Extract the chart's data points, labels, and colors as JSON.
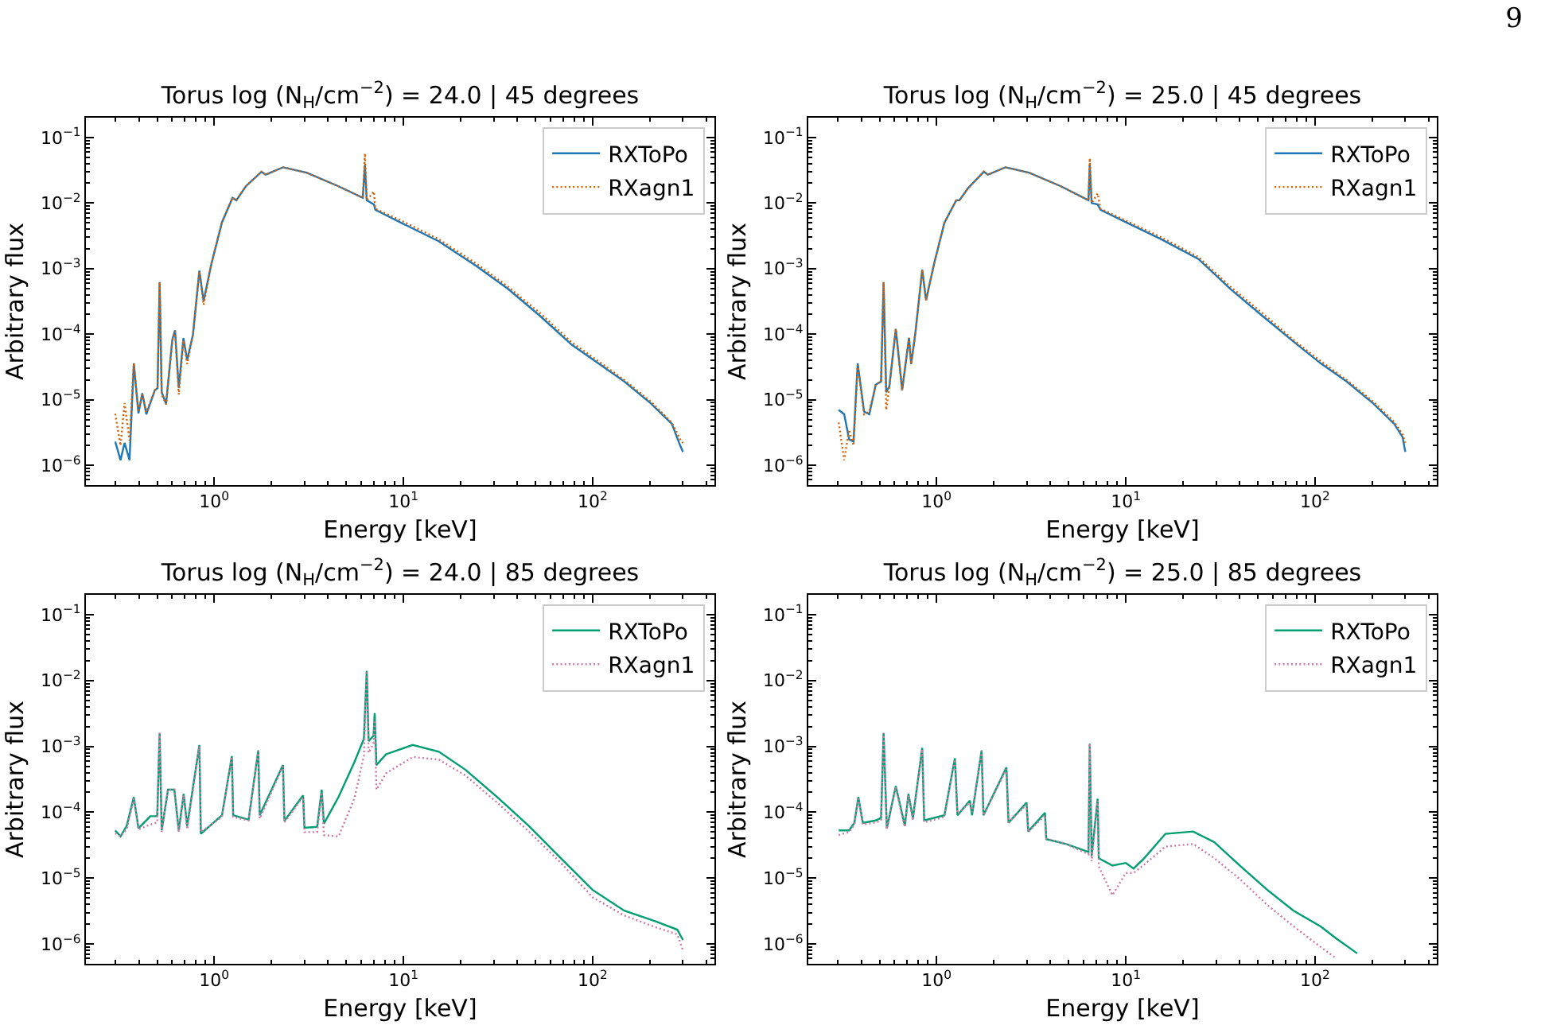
{
  "chart_data": [
    {
      "type": "line",
      "title": "Torus log (N$_{H}$/cm$^{−2}$) = 24.0 | 45 degrees",
      "xlabel": "Energy [keV]",
      "ylabel": "Arbitrary flux",
      "log": "xy",
      "legend": "top right",
      "xlim": [
        0.21,
        440
      ],
      "ylim": [
        5e-07,
        0.2
      ],
      "xticks": [
        {
          "value": 1,
          "label": "10$^{0}$"
        },
        {
          "value": 10,
          "label": "10$^{1}$"
        },
        {
          "value": 100,
          "label": "10$^{2}$"
        }
      ],
      "yticks": [
        {
          "value": 1e-06,
          "label": "10$^{−6}$"
        },
        {
          "value": 1e-05,
          "label": "10$^{−5}$"
        },
        {
          "value": 0.0001,
          "label": "10$^{−4}$"
        },
        {
          "value": 0.001,
          "label": "10$^{−3}$"
        },
        {
          "value": 0.01,
          "label": "10$^{−2}$"
        },
        {
          "value": 0.1,
          "label": "10$^{−1}$"
        }
      ],
      "x": [
        0.3,
        0.32,
        0.336,
        0.357,
        0.376,
        0.398,
        0.417,
        0.438,
        0.486,
        0.502,
        0.515,
        0.528,
        0.557,
        0.601,
        0.621,
        0.65,
        0.688,
        0.72,
        0.773,
        0.835,
        0.879,
        0.968,
        1.1,
        1.25,
        1.31,
        1.47,
        1.78,
        1.87,
        2.31,
        3.08,
        4.54,
        6.1,
        6.26,
        6.4,
        6.99,
        7.1,
        10,
        15.4,
        24.2,
        35.7,
        52.7,
        77.5,
        107,
        147,
        202,
        262,
        290,
        300
      ],
      "series": [
        {
          "name": "RXToPo",
          "color": "#1f77b4",
          "line_style": "solid",
          "values": [
            2.3e-06,
            1.2e-06,
            2.2e-06,
            1.2e-06,
            3.6e-05,
            6.2e-06,
            1.26e-05,
            6e-06,
            1.4e-05,
            1.5e-05,
            0.00062,
            1.3e-05,
            8.7e-06,
            8.3e-05,
            0.000115,
            1.5e-05,
            8.7e-05,
            4e-05,
            0.0001,
            0.00093,
            0.00032,
            0.0012,
            0.0051,
            0.012,
            0.011,
            0.018,
            0.03,
            0.027,
            0.035,
            0.029,
            0.018,
            0.012,
            0.038,
            0.011,
            0.0095,
            0.0079,
            0.0048,
            0.0026,
            0.0011,
            0.00049,
            0.00019,
            6.9e-05,
            3.6e-05,
            1.9e-05,
            8.9e-06,
            4.3e-06,
            2e-06,
            1.6e-06
          ]
        },
        {
          "name": "RXagn1",
          "color": "#d95f02",
          "line_style": "dotted",
          "values": [
            6.1e-06,
            2e-06,
            8.9e-06,
            2.4e-06,
            3.6e-05,
            6.5e-06,
            1.2e-05,
            6.5e-06,
            1.4e-05,
            1.5e-05,
            0.00062,
            1.2e-05,
            8.5e-06,
            8e-05,
            0.00011,
            1.2e-05,
            8e-05,
            3.5e-05,
            0.0001,
            0.0009,
            0.00028,
            0.0012,
            0.0051,
            0.012,
            0.011,
            0.018,
            0.03,
            0.027,
            0.035,
            0.029,
            0.018,
            0.012,
            0.057,
            0.011,
            0.015,
            0.0082,
            0.0052,
            0.0028,
            0.0012,
            0.00053,
            0.00021,
            7.5e-05,
            3.9e-05,
            2e-05,
            9.5e-06,
            4.5e-06,
            2.5e-06,
            2.2e-06
          ]
        }
      ]
    },
    {
      "type": "line",
      "title": "Torus log (N$_{H}$/cm$^{−2}$) = 25.0 | 45 degrees",
      "xlabel": "Energy [keV]",
      "ylabel": "Arbitrary flux",
      "log": "xy",
      "legend": "top right",
      "xlim": [
        0.21,
        440
      ],
      "ylim": [
        5e-07,
        0.2
      ],
      "annotations": [
        "9"
      ],
      "xticks": [
        {
          "value": 1,
          "label": "10$^{0}$"
        },
        {
          "value": 10,
          "label": "10$^{1}$"
        },
        {
          "value": 100,
          "label": "10$^{2}$"
        }
      ],
      "yticks": [
        {
          "value": 1e-06,
          "label": "10$^{−6}$"
        },
        {
          "value": 1e-05,
          "label": "10$^{−5}$"
        },
        {
          "value": 0.0001,
          "label": "10$^{−4}$"
        },
        {
          "value": 0.001,
          "label": "10$^{−3}$"
        },
        {
          "value": 0.01,
          "label": "10$^{−2}$"
        },
        {
          "value": 0.1,
          "label": "10$^{−1}$"
        }
      ],
      "x": [
        0.304,
        0.325,
        0.345,
        0.364,
        0.383,
        0.414,
        0.441,
        0.477,
        0.509,
        0.525,
        0.542,
        0.563,
        0.609,
        0.658,
        0.715,
        0.734,
        0.773,
        0.84,
        0.88,
        0.968,
        1.1,
        1.27,
        1.32,
        1.47,
        1.78,
        1.87,
        2.31,
        3.08,
        4.54,
        6.35,
        6.45,
        6.6,
        7.1,
        7.35,
        10,
        15.4,
        24.2,
        35.7,
        52.7,
        77.5,
        107,
        147,
        202,
        262,
        290,
        300
      ],
      "series": [
        {
          "name": "RXToPo",
          "color": "#1f77b4",
          "line_style": "solid",
          "values": [
            7e-06,
            6e-06,
            2.5e-06,
            2.3e-06,
            3.6e-05,
            6.6e-06,
            6e-06,
            1.7e-05,
            1.9e-05,
            0.00062,
            1.3e-05,
            1.6e-05,
            0.00012,
            1.4e-05,
            8.8e-05,
            3.5e-05,
            0.000105,
            0.00096,
            0.00033,
            0.00115,
            0.005,
            0.011,
            0.011,
            0.017,
            0.03,
            0.027,
            0.035,
            0.029,
            0.018,
            0.011,
            0.039,
            0.01,
            0.0095,
            0.0079,
            0.0051,
            0.0028,
            0.0014,
            0.00049,
            0.00019,
            7.6e-05,
            3.6e-05,
            1.9e-05,
            8.9e-06,
            4.3e-06,
            2.7e-06,
            1.6e-06
          ]
        },
        {
          "name": "RXagn1",
          "color": "#d95f02",
          "line_style": "dotted",
          "values": [
            4.5e-06,
            1.2e-06,
            3.5e-06,
            2e-06,
            3.4e-05,
            6e-06,
            6.5e-06,
            1.7e-05,
            1.9e-05,
            0.00062,
            7e-06,
            1.6e-05,
            0.00012,
            1.4e-05,
            8.8e-05,
            3.5e-05,
            0.000105,
            0.00096,
            0.00033,
            0.00115,
            0.005,
            0.011,
            0.011,
            0.017,
            0.03,
            0.027,
            0.035,
            0.029,
            0.018,
            0.011,
            0.048,
            0.01,
            0.014,
            0.0082,
            0.0054,
            0.003,
            0.0015,
            0.00053,
            0.00021,
            8e-05,
            3.9e-05,
            2e-05,
            9.5e-06,
            4.6e-06,
            3e-06,
            2.2e-06
          ]
        }
      ]
    },
    {
      "type": "line",
      "title": "Torus log (N$_{H}$/cm$^{−2}$) = 24.0 | 85 degrees",
      "xlabel": "Energy [keV]",
      "ylabel": "Arbitrary flux",
      "log": "xy",
      "legend": "top right",
      "xlim": [
        0.21,
        440
      ],
      "ylim": [
        5e-07,
        0.2
      ],
      "xticks": [
        {
          "value": 1,
          "label": "10$^{0}$"
        },
        {
          "value": 10,
          "label": "10$^{1}$"
        },
        {
          "value": 100,
          "label": "10$^{2}$"
        }
      ],
      "yticks": [
        {
          "value": 1e-06,
          "label": "10$^{−6}$"
        },
        {
          "value": 1e-05,
          "label": "10$^{−5}$"
        },
        {
          "value": 0.0001,
          "label": "10$^{−4}$"
        },
        {
          "value": 0.001,
          "label": "10$^{−3}$"
        },
        {
          "value": 0.01,
          "label": "10$^{−2}$"
        },
        {
          "value": 0.1,
          "label": "10$^{−1}$"
        }
      ],
      "x": [
        0.3,
        0.32,
        0.345,
        0.376,
        0.398,
        0.46,
        0.5,
        0.515,
        0.528,
        0.57,
        0.616,
        0.65,
        0.69,
        0.72,
        0.835,
        0.85,
        1.1,
        1.24,
        1.26,
        1.52,
        1.71,
        1.74,
        2.31,
        2.35,
        2.95,
        3.0,
        3.5,
        3.7,
        3.8,
        4.54,
        5.5,
        6.18,
        6.4,
        6.55,
        6.95,
        7.05,
        7.2,
        8.1,
        11.2,
        15.4,
        21.3,
        31.3,
        46,
        68,
        100,
        147,
        215,
        280,
        300
      ],
      "series": [
        {
          "name": "RXToPo",
          "color": "#009e73",
          "line_style": "solid",
          "values": [
            5.3e-05,
            4.3e-05,
            6.2e-05,
            0.00017,
            5.7e-05,
            8.7e-05,
            8.7e-05,
            0.0016,
            5.3e-05,
            0.00022,
            0.00022,
            5.3e-05,
            0.00019,
            6.2e-05,
            0.00105,
            4.7e-05,
            9e-05,
            0.00071,
            9e-05,
            7.7e-05,
            0.00087,
            9e-05,
            0.00052,
            7.4e-05,
            0.00018,
            5.8e-05,
            6e-05,
            0.00022,
            6.7e-05,
            0.00017,
            0.00057,
            0.0013,
            0.014,
            0.0012,
            0.00145,
            0.0032,
            0.00052,
            0.00076,
            0.00105,
            0.00083,
            0.00044,
            0.00017,
            6.2e-05,
            2e-05,
            6.6e-06,
            3.2e-06,
            2.2e-06,
            1.65e-06,
            1.15e-06
          ]
        },
        {
          "name": "RXagn1",
          "color": "#cc79a7",
          "line_style": "dotted",
          "values": [
            4.8e-05,
            4.3e-05,
            5.5e-05,
            0.00016,
            5.5e-05,
            6.5e-05,
            7e-05,
            0.0016,
            5e-05,
            0.00022,
            0.00022,
            5e-05,
            0.00018,
            5.5e-05,
            0.001,
            5e-05,
            8.5e-05,
            0.0007,
            8.5e-05,
            7.5e-05,
            0.00085,
            8e-05,
            0.0005,
            7e-05,
            0.00017,
            5e-05,
            5e-05,
            0.0002,
            4.5e-05,
            4.3e-05,
            0.00016,
            0.00071,
            0.014,
            0.0008,
            0.0011,
            0.0025,
            0.00022,
            0.00039,
            0.00069,
            0.00063,
            0.00036,
            0.00014,
            5.1e-05,
            1.7e-05,
            5.1e-06,
            2.7e-06,
            1.8e-06,
            1.4e-06,
            8e-07
          ]
        }
      ]
    },
    {
      "type": "line",
      "title": "Torus log (N$_{H}$/cm$^{−2}$) = 25.0 | 85 degrees",
      "xlabel": "Energy [keV]",
      "ylabel": "Arbitrary flux",
      "log": "xy",
      "legend": "top right",
      "xlim": [
        0.21,
        440
      ],
      "ylim": [
        5e-07,
        0.2
      ],
      "xticks": [
        {
          "value": 1,
          "label": "10$^{0}$"
        },
        {
          "value": 10,
          "label": "10$^{1}$"
        },
        {
          "value": 100,
          "label": "10$^{2}$"
        }
      ],
      "yticks": [
        {
          "value": 1e-06,
          "label": "10$^{−6}$"
        },
        {
          "value": 1e-05,
          "label": "10$^{−5}$"
        },
        {
          "value": 0.0001,
          "label": "10$^{−4}$"
        },
        {
          "value": 0.001,
          "label": "10$^{−3}$"
        },
        {
          "value": 0.01,
          "label": "10$^{−2}$"
        },
        {
          "value": 0.1,
          "label": "10$^{−1}$"
        }
      ],
      "x": [
        0.304,
        0.345,
        0.368,
        0.386,
        0.408,
        0.477,
        0.509,
        0.525,
        0.546,
        0.609,
        0.65,
        0.68,
        0.71,
        0.75,
        0.84,
        0.86,
        1.1,
        1.25,
        1.29,
        1.5,
        1.54,
        1.73,
        1.77,
        2.34,
        2.4,
        2.99,
        3.05,
        3.74,
        3.8,
        4.84,
        6.35,
        6.45,
        6.6,
        7.1,
        7.2,
        8.5,
        10,
        11.0,
        12.5,
        16.2,
        22.7,
        29.4,
        40,
        56,
        77,
        107,
        130,
        167
      ],
      "series": [
        {
          "name": "RXToPo",
          "color": "#009e73",
          "line_style": "solid",
          "values": [
            5.3e-05,
            5.3e-05,
            6.9e-05,
            0.00017,
            6.9e-05,
            7.5e-05,
            8.2e-05,
            0.0016,
            5.7e-05,
            0.00025,
            0.00011,
            6.2e-05,
            0.00019,
            8.2e-05,
            0.00095,
            7.5e-05,
            9e-05,
            0.00066,
            9e-05,
            0.00015,
            9e-05,
            0.00087,
            9e-05,
            0.00048,
            6.9e-05,
            0.00014,
            5.1e-05,
            9.8e-05,
            3.9e-05,
            3.3e-05,
            2.5e-05,
            0.0011,
            2.2e-05,
            0.00016,
            2e-05,
            1.55e-05,
            1.7e-05,
            1.4e-05,
            2e-05,
            4.7e-05,
            5.1e-05,
            3.5e-05,
            1.55e-05,
            6.6e-06,
            3.2e-06,
            1.85e-06,
            1.2e-06,
            7.2e-07
          ]
        },
        {
          "name": "RXagn1",
          "color": "#cc79a7",
          "line_style": "dotted",
          "values": [
            4.5e-05,
            5e-05,
            6.5e-05,
            0.00016,
            6.5e-05,
            7e-05,
            7.5e-05,
            0.0016,
            5.5e-05,
            0.00024,
            0.0001,
            6e-05,
            0.00018,
            7.5e-05,
            0.0009,
            7e-05,
            8.5e-05,
            0.00063,
            9.5e-05,
            0.00014,
            0.0001,
            0.00085,
            9e-05,
            0.00045,
            7e-05,
            0.00013,
            5e-05,
            9e-05,
            4e-05,
            3.3e-05,
            2.3e-05,
            0.0011,
            1.8e-05,
            0.00015,
            1.5e-05,
            5.5e-06,
            1.2e-05,
            1.2e-05,
            1.6e-05,
            3e-05,
            3.3e-05,
            2e-05,
            9.7e-06,
            3.9e-06,
            1.85e-06,
            9e-07,
            6e-07,
            null
          ]
        }
      ]
    }
  ]
}
